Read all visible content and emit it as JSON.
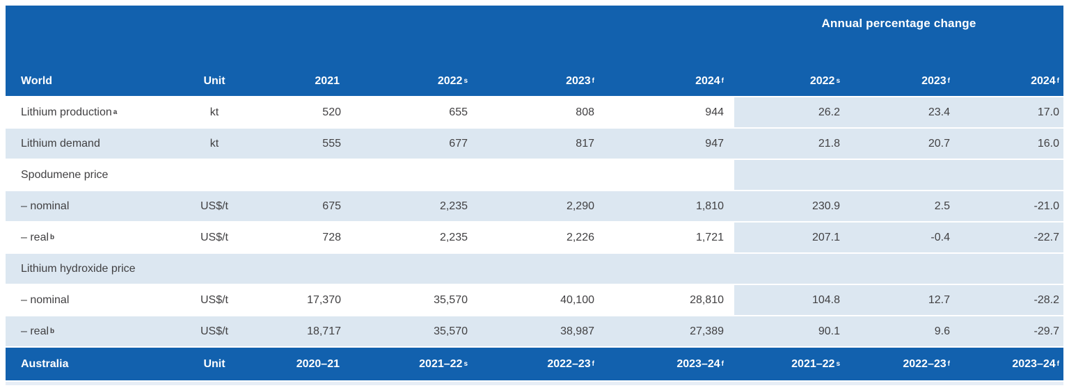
{
  "table": {
    "annual_pct_header": "Annual percentage change",
    "world_header": {
      "label": "World",
      "unit": "Unit",
      "year_cols": [
        {
          "text": "2021",
          "sup": ""
        },
        {
          "text": "2022",
          "sup": "s"
        },
        {
          "text": "2023",
          "sup": "f"
        },
        {
          "text": "2024",
          "sup": "f"
        }
      ],
      "pct_cols": [
        {
          "text": "2022",
          "sup": "s"
        },
        {
          "text": "2023",
          "sup": "f"
        },
        {
          "text": "2024",
          "sup": "f"
        }
      ]
    },
    "rows": [
      {
        "label": "Lithium production",
        "sup": "a",
        "unit": "kt",
        "values": [
          "520",
          "655",
          "808",
          "944"
        ],
        "pct": [
          "26.2",
          "23.4",
          "17.0"
        ]
      },
      {
        "label": "Lithium demand",
        "sup": "",
        "unit": "kt",
        "values": [
          "555",
          "677",
          "817",
          "947"
        ],
        "pct": [
          "21.8",
          "20.7",
          "16.0"
        ]
      },
      {
        "label": "Spodumene price",
        "sup": "",
        "unit": "",
        "values": [
          "",
          "",
          "",
          ""
        ],
        "pct": [
          "",
          "",
          ""
        ]
      },
      {
        "label": "– nominal",
        "sup": "",
        "unit": "US$/t",
        "values": [
          "675",
          "2,235",
          "2,290",
          "1,810"
        ],
        "pct": [
          "230.9",
          "2.5",
          "-21.0"
        ]
      },
      {
        "label": "– real",
        "sup": "b",
        "unit": "US$/t",
        "values": [
          "728",
          "2,235",
          "2,226",
          "1,721"
        ],
        "pct": [
          "207.1",
          "-0.4",
          "-22.7"
        ]
      },
      {
        "label": "Lithium hydroxide price",
        "sup": "",
        "unit": "",
        "values": [
          "",
          "",
          "",
          ""
        ],
        "pct": [
          "",
          "",
          ""
        ]
      },
      {
        "label": "– nominal",
        "sup": "",
        "unit": "US$/t",
        "values": [
          "17,370",
          "35,570",
          "40,100",
          "28,810"
        ],
        "pct": [
          "104.8",
          "12.7",
          "-28.2"
        ]
      },
      {
        "label": "– real",
        "sup": "b",
        "unit": "US$/t",
        "values": [
          "18,717",
          "35,570",
          "38,987",
          "27,389"
        ],
        "pct": [
          "90.1",
          "9.6",
          "-29.7"
        ]
      }
    ],
    "australia_header": {
      "label": "Australia",
      "unit": "Unit",
      "year_cols": [
        {
          "text": "2020–21",
          "sup": ""
        },
        {
          "text": "2021–22",
          "sup": "s"
        },
        {
          "text": "2022–23",
          "sup": "f"
        },
        {
          "text": "2023–24",
          "sup": "f"
        }
      ],
      "pct_cols": [
        {
          "text": "2021–22",
          "sup": "s"
        },
        {
          "text": "2022–23",
          "sup": "f"
        },
        {
          "text": "2023–24",
          "sup": "f"
        }
      ]
    },
    "colors": {
      "header_blue": "#1261ae",
      "row_blue": "#dce7f1",
      "body_text": "#414042",
      "header_text": "#ffffff"
    }
  },
  "chart_data": {
    "type": "table",
    "title": "World lithium outlook",
    "columns": [
      "World",
      "Unit",
      "2021",
      "2022s",
      "2023f",
      "2024f",
      "% chg 2022s",
      "% chg 2023f",
      "% chg 2024f"
    ],
    "rows": [
      [
        "Lithium production a",
        "kt",
        520,
        655,
        808,
        944,
        26.2,
        23.4,
        17.0
      ],
      [
        "Lithium demand",
        "kt",
        555,
        677,
        817,
        947,
        21.8,
        20.7,
        16.0
      ],
      [
        "Spodumene price – nominal",
        "US$/t",
        675,
        2235,
        2290,
        1810,
        230.9,
        2.5,
        -21.0
      ],
      [
        "Spodumene price – real b",
        "US$/t",
        728,
        2235,
        2226,
        1721,
        207.1,
        -0.4,
        -22.7
      ],
      [
        "Lithium hydroxide price – nominal",
        "US$/t",
        17370,
        35570,
        40100,
        28810,
        104.8,
        12.7,
        -28.2
      ],
      [
        "Lithium hydroxide price – real b",
        "US$/t",
        18717,
        35570,
        38987,
        27389,
        90.1,
        9.6,
        -29.7
      ]
    ],
    "footer_columns": [
      "Australia",
      "Unit",
      "2020–21",
      "2021–22s",
      "2022–23f",
      "2023–24f",
      "2021–22s",
      "2022–23f",
      "2023–24f"
    ]
  }
}
